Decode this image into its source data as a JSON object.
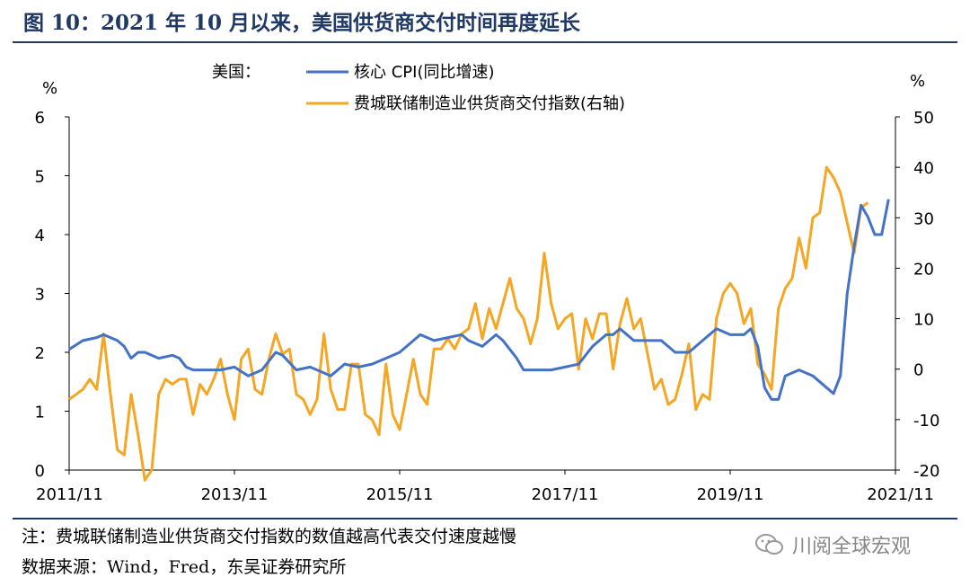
{
  "header": {
    "title": "图 10：2021 年 10 月以来，美国供货商交付时间再度延长"
  },
  "footer": {
    "note": "注：费城联储制造业供货商交付指数的数值越高代表交付速度越慢",
    "source": "数据来源：Wind，Fred，东吴证券研究所",
    "watermark": "川阅全球宏观"
  },
  "chart_data": {
    "type": "line",
    "legend_prefix": "美国：",
    "left_unit": "%",
    "right_unit": "%",
    "x_tick_labels": [
      "2011/11",
      "2013/11",
      "2015/11",
      "2017/11",
      "2019/11",
      "2021/11"
    ],
    "x_range": [
      "2011-11",
      "2021-11"
    ],
    "y_left": {
      "min": 0,
      "max": 6,
      "ticks": [
        0,
        1,
        2,
        3,
        4,
        5,
        6
      ]
    },
    "y_right": {
      "min": -20,
      "max": 50,
      "ticks": [
        -20,
        -10,
        0,
        10,
        20,
        30,
        40,
        50
      ]
    },
    "grid": false,
    "legend_position": "top-center",
    "series": [
      {
        "name": "核心 CPI(同比增速)",
        "axis": "left",
        "color": "#4472c4",
        "points": [
          [
            "2011-11",
            2.05
          ],
          [
            "2012-01",
            2.2
          ],
          [
            "2012-03",
            2.25
          ],
          [
            "2012-04",
            2.3
          ],
          [
            "2012-05",
            2.25
          ],
          [
            "2012-06",
            2.2
          ],
          [
            "2012-07",
            2.1
          ],
          [
            "2012-08",
            1.9
          ],
          [
            "2012-09",
            2.0
          ],
          [
            "2012-10",
            2.0
          ],
          [
            "2012-12",
            1.9
          ],
          [
            "2013-02",
            1.95
          ],
          [
            "2013-03",
            1.9
          ],
          [
            "2013-04",
            1.75
          ],
          [
            "2013-05",
            1.7
          ],
          [
            "2013-07",
            1.7
          ],
          [
            "2013-09",
            1.7
          ],
          [
            "2013-11",
            1.75
          ],
          [
            "2014-01",
            1.6
          ],
          [
            "2014-03",
            1.7
          ],
          [
            "2014-05",
            2.0
          ],
          [
            "2014-06",
            1.95
          ],
          [
            "2014-08",
            1.7
          ],
          [
            "2014-10",
            1.75
          ],
          [
            "2014-11",
            1.7
          ],
          [
            "2015-01",
            1.6
          ],
          [
            "2015-03",
            1.8
          ],
          [
            "2015-05",
            1.75
          ],
          [
            "2015-07",
            1.8
          ],
          [
            "2015-09",
            1.9
          ],
          [
            "2015-11",
            2.0
          ],
          [
            "2016-01",
            2.2
          ],
          [
            "2016-02",
            2.3
          ],
          [
            "2016-04",
            2.2
          ],
          [
            "2016-06",
            2.25
          ],
          [
            "2016-08",
            2.3
          ],
          [
            "2016-09",
            2.2
          ],
          [
            "2016-11",
            2.1
          ],
          [
            "2017-01",
            2.3
          ],
          [
            "2017-02",
            2.2
          ],
          [
            "2017-04",
            1.9
          ],
          [
            "2017-05",
            1.7
          ],
          [
            "2017-07",
            1.7
          ],
          [
            "2017-09",
            1.7
          ],
          [
            "2017-11",
            1.75
          ],
          [
            "2018-01",
            1.8
          ],
          [
            "2018-03",
            2.1
          ],
          [
            "2018-05",
            2.3
          ],
          [
            "2018-06",
            2.3
          ],
          [
            "2018-07",
            2.4
          ],
          [
            "2018-09",
            2.2
          ],
          [
            "2018-11",
            2.2
          ],
          [
            "2019-01",
            2.2
          ],
          [
            "2019-03",
            2.0
          ],
          [
            "2019-05",
            2.0
          ],
          [
            "2019-07",
            2.2
          ],
          [
            "2019-09",
            2.4
          ],
          [
            "2019-11",
            2.3
          ],
          [
            "2020-01",
            2.3
          ],
          [
            "2020-02",
            2.4
          ],
          [
            "2020-03",
            2.1
          ],
          [
            "2020-04",
            1.4
          ],
          [
            "2020-05",
            1.2
          ],
          [
            "2020-06",
            1.2
          ],
          [
            "2020-07",
            1.6
          ],
          [
            "2020-09",
            1.7
          ],
          [
            "2020-11",
            1.6
          ],
          [
            "2021-01",
            1.4
          ],
          [
            "2021-02",
            1.3
          ],
          [
            "2021-03",
            1.6
          ],
          [
            "2021-04",
            3.0
          ],
          [
            "2021-05",
            3.8
          ],
          [
            "2021-06",
            4.5
          ],
          [
            "2021-07",
            4.3
          ],
          [
            "2021-08",
            4.0
          ],
          [
            "2021-09",
            4.0
          ],
          [
            "2021-10",
            4.6
          ]
        ]
      },
      {
        "name": "费城联储制造业供货商交付指数(右轴)",
        "axis": "right",
        "color": "#f5a623",
        "points": [
          [
            "2011-11",
            -6
          ],
          [
            "2011-12",
            -5
          ],
          [
            "2012-01",
            -4
          ],
          [
            "2012-02",
            -2
          ],
          [
            "2012-03",
            -4
          ],
          [
            "2012-04",
            7
          ],
          [
            "2012-05",
            -5
          ],
          [
            "2012-06",
            -16
          ],
          [
            "2012-07",
            -17
          ],
          [
            "2012-08",
            -5
          ],
          [
            "2012-09",
            -13
          ],
          [
            "2012-10",
            -22
          ],
          [
            "2012-11",
            -20
          ],
          [
            "2012-12",
            -5
          ],
          [
            "2013-01",
            -2
          ],
          [
            "2013-02",
            -3
          ],
          [
            "2013-03",
            -2
          ],
          [
            "2013-04",
            -2
          ],
          [
            "2013-05",
            -9
          ],
          [
            "2013-06",
            -3
          ],
          [
            "2013-07",
            -5
          ],
          [
            "2013-08",
            -2
          ],
          [
            "2013-09",
            2
          ],
          [
            "2013-10",
            -5
          ],
          [
            "2013-11",
            -10
          ],
          [
            "2013-12",
            2
          ],
          [
            "2014-01",
            4
          ],
          [
            "2014-02",
            -4
          ],
          [
            "2014-03",
            -5
          ],
          [
            "2014-04",
            2
          ],
          [
            "2014-05",
            7
          ],
          [
            "2014-06",
            3
          ],
          [
            "2014-07",
            4
          ],
          [
            "2014-08",
            -5
          ],
          [
            "2014-09",
            -6
          ],
          [
            "2014-10",
            -9
          ],
          [
            "2014-11",
            -6
          ],
          [
            "2014-12",
            7
          ],
          [
            "2015-01",
            -4
          ],
          [
            "2015-02",
            -8
          ],
          [
            "2015-03",
            -8
          ],
          [
            "2015-04",
            1
          ],
          [
            "2015-05",
            1
          ],
          [
            "2015-06",
            -9
          ],
          [
            "2015-07",
            -10
          ],
          [
            "2015-08",
            -13
          ],
          [
            "2015-09",
            1
          ],
          [
            "2015-10",
            -9
          ],
          [
            "2015-11",
            -12
          ],
          [
            "2015-12",
            -5
          ],
          [
            "2016-01",
            2
          ],
          [
            "2016-02",
            -5
          ],
          [
            "2016-03",
            -7
          ],
          [
            "2016-04",
            4
          ],
          [
            "2016-05",
            4
          ],
          [
            "2016-06",
            6
          ],
          [
            "2016-07",
            4
          ],
          [
            "2016-08",
            7
          ],
          [
            "2016-09",
            8
          ],
          [
            "2016-10",
            13
          ],
          [
            "2016-11",
            6
          ],
          [
            "2016-12",
            12
          ],
          [
            "2017-01",
            8
          ],
          [
            "2017-02",
            13
          ],
          [
            "2017-03",
            18
          ],
          [
            "2017-04",
            12
          ],
          [
            "2017-05",
            10
          ],
          [
            "2017-06",
            5
          ],
          [
            "2017-07",
            10
          ],
          [
            "2017-08",
            23
          ],
          [
            "2017-09",
            13
          ],
          [
            "2017-10",
            8
          ],
          [
            "2017-11",
            10
          ],
          [
            "2017-12",
            11
          ],
          [
            "2018-01",
            0
          ],
          [
            "2018-02",
            10
          ],
          [
            "2018-03",
            6
          ],
          [
            "2018-04",
            11
          ],
          [
            "2018-05",
            11
          ],
          [
            "2018-06",
            0
          ],
          [
            "2018-07",
            9
          ],
          [
            "2018-08",
            14
          ],
          [
            "2018-09",
            8
          ],
          [
            "2018-10",
            10
          ],
          [
            "2018-11",
            3
          ],
          [
            "2018-12",
            -4
          ],
          [
            "2019-01",
            -2
          ],
          [
            "2019-02",
            -7
          ],
          [
            "2019-03",
            -6
          ],
          [
            "2019-04",
            -1
          ],
          [
            "2019-05",
            5
          ],
          [
            "2019-06",
            -8
          ],
          [
            "2019-07",
            -5
          ],
          [
            "2019-08",
            -6
          ],
          [
            "2019-09",
            10
          ],
          [
            "2019-10",
            15
          ],
          [
            "2019-11",
            17
          ],
          [
            "2019-12",
            15
          ],
          [
            "2020-01",
            9
          ],
          [
            "2020-02",
            12
          ],
          [
            "2020-03",
            1
          ],
          [
            "2020-04",
            -1
          ],
          [
            "2020-05",
            -4
          ],
          [
            "2020-06",
            12
          ],
          [
            "2020-07",
            16
          ],
          [
            "2020-08",
            18
          ],
          [
            "2020-09",
            26
          ],
          [
            "2020-10",
            20
          ],
          [
            "2020-11",
            30
          ],
          [
            "2020-12",
            31
          ],
          [
            "2021-01",
            40
          ],
          [
            "2021-02",
            38
          ],
          [
            "2021-03",
            35
          ],
          [
            "2021-04",
            29
          ],
          [
            "2021-05",
            23
          ],
          [
            "2021-06",
            32
          ],
          [
            "2021-07",
            33
          ]
        ]
      }
    ]
  }
}
